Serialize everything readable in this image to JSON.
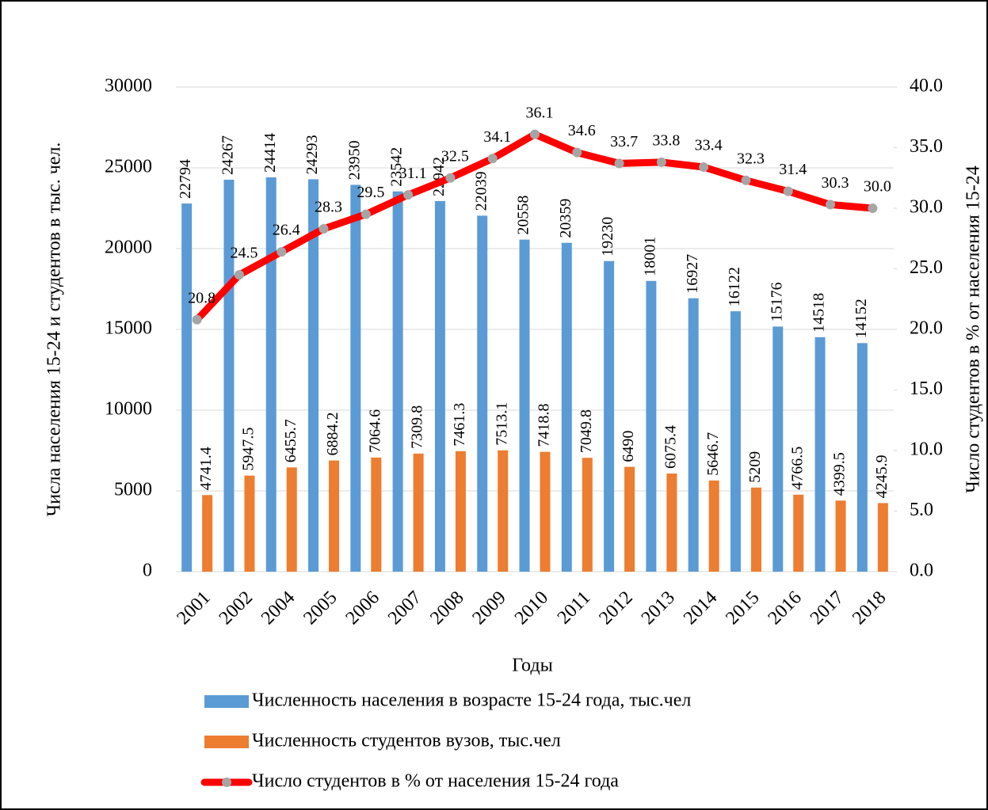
{
  "chart_data": {
    "type": "bar-line",
    "x_label": "Годы",
    "y_label": "Числа населения 15-24 и студентов в тыс. чел.",
    "y2_label": "Число студентов в % от населения 15-24",
    "categories": [
      "2001",
      "2002",
      "2004",
      "2005",
      "2006",
      "2007",
      "2008",
      "2009",
      "2010",
      "2011",
      "2012",
      "2013",
      "2014",
      "2015",
      "2016",
      "2017",
      "2018"
    ],
    "ylim": [
      0,
      30000
    ],
    "yticks": [
      0,
      5000,
      10000,
      15000,
      20000,
      25000,
      30000
    ],
    "y2lim": [
      0,
      40
    ],
    "y2ticks": [
      {
        "value": 0,
        "label": "0.0"
      },
      {
        "value": 5,
        "label": "5.0"
      },
      {
        "value": 10,
        "label": "10.0"
      },
      {
        "value": 15,
        "label": "15.0"
      },
      {
        "value": 20,
        "label": "20.0"
      },
      {
        "value": 25,
        "label": "25.0"
      },
      {
        "value": 30,
        "label": "30.0"
      },
      {
        "value": 35,
        "label": "35.0"
      },
      {
        "value": 40,
        "label": "40.0"
      }
    ],
    "series": [
      {
        "name": "Численность населения в возрасте 15-24 года, тыс.чел",
        "type": "bar",
        "color": "#5b9bd5",
        "values": [
          22794,
          24267,
          24414,
          24293,
          23950,
          23542,
          22942,
          22039,
          20558,
          20359,
          19230,
          18001,
          16927,
          16122,
          15176,
          14518,
          14152
        ]
      },
      {
        "name": "Численность студентов вузов, тыс.чел",
        "type": "bar",
        "color": "#ed7d31",
        "values": [
          4741.4,
          5947.5,
          6455.7,
          6884.2,
          7064.6,
          7309.8,
          7461.3,
          7513.1,
          7418.8,
          7049.8,
          6490,
          6075.4,
          5646.7,
          5209,
          4766.5,
          4399.5,
          4245.9
        ]
      },
      {
        "name": "Число студентов в % от населения 15-24 года",
        "type": "line",
        "axis": "y2",
        "color": "#ff0000",
        "marker_color": "#a5a5a5",
        "values": [
          20.8,
          24.5,
          26.4,
          28.3,
          29.5,
          31.1,
          32.5,
          34.1,
          36.1,
          34.6,
          33.7,
          33.8,
          33.4,
          32.3,
          31.4,
          30.3,
          30.0
        ],
        "value_labels": [
          "20.8",
          "24.5",
          "26.4",
          "28.3",
          "29.5",
          "31.1",
          "32.5",
          "34.1",
          "36.1",
          "34.6",
          "33.7",
          "33.8",
          "33.4",
          "32.3",
          "31.4",
          "30.3",
          "30.0"
        ]
      }
    ]
  }
}
